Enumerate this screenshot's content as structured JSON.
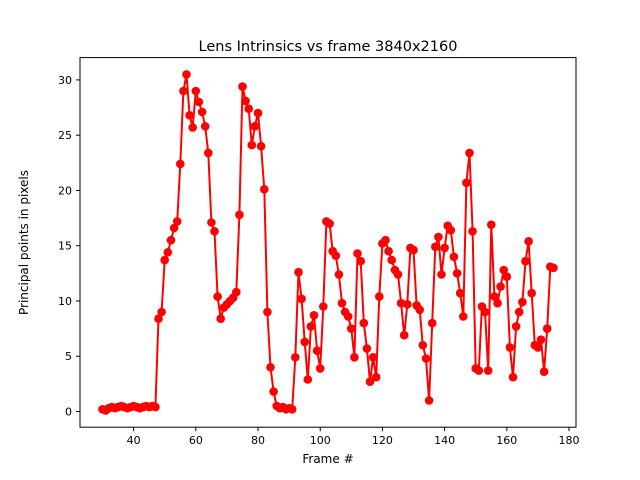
{
  "chart_data": {
    "type": "line",
    "title": "Lens Intrinsics vs frame 3840x2160",
    "xlabel": "Frame #",
    "ylabel": "Principal points in pixels",
    "legend": null,
    "grid": false,
    "line_color": "#ff0000",
    "marker": "o",
    "marker_radius": 4.3,
    "line_width": 2,
    "background_color": "#ffffff",
    "spine_color": "#000000",
    "xlim": [
      22.75,
      182.25
    ],
    "ylim": [
      -1.42,
      32.02
    ],
    "xticks": [
      40,
      60,
      80,
      100,
      120,
      140,
      160,
      180
    ],
    "yticks": [
      0,
      5,
      10,
      15,
      20,
      25,
      30
    ],
    "x": [
      30,
      31,
      32,
      33,
      34,
      35,
      36,
      37,
      38,
      39,
      40,
      41,
      42,
      43,
      44,
      45,
      46,
      47,
      48,
      49,
      50,
      51,
      52,
      53,
      54,
      55,
      56,
      57,
      58,
      59,
      60,
      61,
      62,
      63,
      64,
      65,
      66,
      67,
      68,
      69,
      70,
      71,
      72,
      73,
      74,
      75,
      76,
      77,
      78,
      79,
      80,
      81,
      82,
      83,
      84,
      85,
      86,
      87,
      88,
      89,
      90,
      91,
      92,
      93,
      94,
      95,
      96,
      97,
      98,
      99,
      100,
      101,
      102,
      103,
      104,
      105,
      106,
      107,
      108,
      109,
      110,
      111,
      112,
      113,
      114,
      115,
      116,
      117,
      118,
      119,
      120,
      121,
      122,
      123,
      124,
      125,
      126,
      127,
      128,
      129,
      130,
      131,
      132,
      133,
      134,
      135,
      136,
      137,
      138,
      139,
      140,
      141,
      142,
      143,
      144,
      145,
      146,
      147,
      148,
      149,
      150,
      151,
      152,
      153,
      154,
      155,
      156,
      157,
      158,
      159,
      160,
      161,
      162,
      163,
      164,
      165,
      166,
      167,
      168,
      169,
      170,
      171,
      172,
      173,
      174,
      175
    ],
    "values": [
      0.2,
      0.1,
      0.3,
      0.4,
      0.3,
      0.4,
      0.5,
      0.4,
      0.3,
      0.4,
      0.5,
      0.4,
      0.3,
      0.4,
      0.5,
      0.4,
      0.5,
      0.4,
      8.4,
      9.0,
      13.7,
      14.4,
      15.5,
      16.6,
      17.2,
      22.4,
      29.0,
      30.5,
      26.8,
      25.7,
      29.0,
      28.0,
      27.1,
      25.8,
      23.4,
      17.1,
      16.3,
      10.4,
      8.4,
      9.4,
      9.7,
      10.0,
      10.3,
      10.8,
      17.8,
      29.4,
      28.1,
      27.4,
      24.1,
      25.8,
      27.0,
      24.0,
      20.1,
      9.0,
      4.0,
      1.8,
      0.5,
      0.3,
      0.4,
      0.2,
      0.3,
      0.2,
      4.9,
      12.6,
      10.2,
      6.3,
      2.9,
      7.7,
      8.7,
      5.5,
      3.9,
      9.5,
      17.2,
      17.0,
      14.5,
      14.1,
      12.4,
      9.8,
      9.0,
      8.6,
      7.5,
      4.9,
      14.3,
      13.6,
      8.0,
      5.7,
      2.7,
      4.9,
      3.1,
      10.4,
      15.2,
      15.5,
      14.5,
      13.7,
      12.8,
      12.4,
      9.8,
      6.9,
      9.7,
      14.8,
      14.6,
      9.6,
      9.2,
      6.0,
      4.8,
      1.0,
      8.0,
      14.9,
      15.8,
      12.4,
      14.8,
      16.8,
      16.4,
      14.0,
      12.5,
      10.7,
      8.6,
      20.7,
      23.4,
      16.3,
      3.9,
      3.7,
      9.5,
      9.0,
      3.7,
      16.9,
      10.4,
      9.8,
      11.3,
      12.8,
      12.2,
      5.8,
      3.1,
      7.7,
      9.0,
      9.9,
      13.6,
      15.4,
      10.7,
      6.0,
      5.8,
      6.5,
      3.6,
      7.5,
      13.1,
      13.0
    ]
  }
}
